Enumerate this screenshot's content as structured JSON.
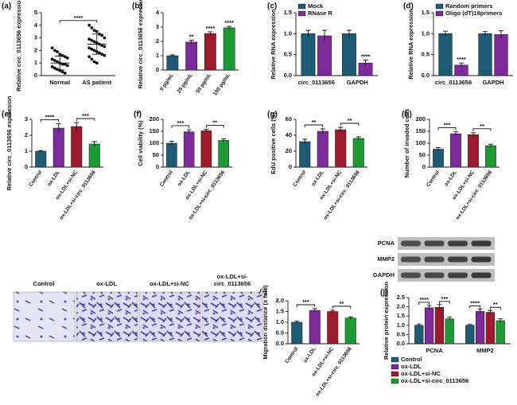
{
  "chart_data": [
    {
      "type": "dot",
      "panel": "(a)",
      "y_label": "Relative circ_0113656 expression",
      "categories": [
        "Normal",
        "AS patient"
      ],
      "values": [
        [
          2.2,
          2.0,
          1.9,
          1.7,
          1.6,
          1.5,
          1.4,
          1.3,
          1.2,
          1.1,
          1.0,
          0.9,
          0.9,
          0.8,
          0.7,
          0.6,
          0.5,
          0.4,
          0.3,
          0.2
        ],
        [
          4.0,
          3.8,
          3.6,
          3.5,
          3.3,
          3.2,
          3.0,
          2.9,
          2.8,
          2.7,
          2.6,
          2.5,
          2.4,
          2.3,
          2.2,
          2.1,
          2.0,
          1.9,
          1.8,
          1.7,
          1.6,
          1.5,
          1.3,
          1.1,
          1.0
        ]
      ],
      "means": [
        1.0,
        2.5
      ],
      "sd": [
        0.55,
        0.8
      ],
      "comparison": "****",
      "color": "#111111",
      "ylim": [
        0,
        5
      ],
      "yticks": [
        0,
        1,
        2,
        3,
        4,
        5
      ]
    },
    {
      "type": "bar",
      "panel": "(b)",
      "y_label": "Relative circ_0113656 expression",
      "categories": [
        "0 pg/mL",
        "25 pg/mL",
        "50 pg/mL",
        "100 pg/mL"
      ],
      "values": [
        1.0,
        1.95,
        2.55,
        2.95
      ],
      "errors": [
        0.06,
        0.12,
        0.12,
        0.1
      ],
      "colors": [
        "#1d5c74",
        "#7d2b9b",
        "#9e1b2b",
        "#1c9a33"
      ],
      "annotations": [
        null,
        "**",
        "****",
        "****"
      ],
      "ylim": [
        0,
        4
      ],
      "yticks": [
        0,
        1,
        2,
        3,
        4
      ]
    },
    {
      "type": "grouped_bar",
      "panel": "(c)",
      "y_label": "Relative RNA expression",
      "categories": [
        "circ_0113656",
        "GAPDH"
      ],
      "series": [
        {
          "name": "Mock",
          "color": "#1d5c74",
          "values": [
            1.0,
            1.0
          ],
          "errors": [
            0.08,
            0.08
          ],
          "annotations": [
            null,
            null
          ]
        },
        {
          "name": "RNase R",
          "color": "#7d2b9b",
          "values": [
            0.95,
            0.3
          ],
          "errors": [
            0.13,
            0.07
          ],
          "annotations": [
            null,
            "****"
          ]
        }
      ],
      "ylim": [
        0,
        1.5
      ],
      "yticks": [
        {
          "value": 0,
          "label": "0.0"
        },
        {
          "value": 0.5,
          "label": "0.5"
        },
        {
          "value": 1,
          "label": "1.0"
        },
        {
          "value": 1.5,
          "label": "1.5"
        }
      ]
    },
    {
      "type": "grouped_bar",
      "panel": "(d)",
      "y_label": "Relative RNA expression",
      "categories": [
        "circ_0113656",
        "GAPDH"
      ],
      "series": [
        {
          "name": "Random primers",
          "color": "#1d5c74",
          "values": [
            1.0,
            1.0
          ],
          "errors": [
            0.06,
            0.05
          ],
          "annotations": [
            null,
            null
          ]
        },
        {
          "name": "Oligo (dT)18primers",
          "color": "#7d2b9b",
          "values": [
            0.25,
            0.98
          ],
          "errors": [
            0.05,
            0.09
          ],
          "annotations": [
            "****",
            null
          ]
        }
      ],
      "ylim": [
        0,
        1.5
      ],
      "yticks": [
        {
          "value": 0,
          "label": "0.0"
        },
        {
          "value": 0.5,
          "label": "0.5"
        },
        {
          "value": 1,
          "label": "1.0"
        },
        {
          "value": 1.5,
          "label": "1.5"
        }
      ]
    },
    {
      "type": "bar",
      "panel": "(e)",
      "y_label": "Relative circ_0113656 expression",
      "categories": [
        "Control",
        "ox-LDL",
        "ox-LDL+si-NC",
        "ox-LDL+si-circ_0113656"
      ],
      "values": [
        1.0,
        2.45,
        2.55,
        1.45
      ],
      "errors": [
        0.04,
        0.28,
        0.25,
        0.15
      ],
      "colors": [
        "#1d5c74",
        "#7d2b9b",
        "#9e1b2b",
        "#1c9a33"
      ],
      "comparisons": [
        "****",
        "***"
      ],
      "ylim": [
        0,
        3
      ],
      "yticks": [
        0,
        1,
        2,
        3
      ]
    },
    {
      "type": "bar",
      "panel": "(f)",
      "y_label": "Cell viability (%)",
      "categories": [
        "Control",
        "ox-LDL",
        "ox-LDL+si-NC",
        "ox-LDL+si-circ_0113656"
      ],
      "values": [
        100,
        148,
        152,
        112
      ],
      "errors": [
        8,
        9,
        6,
        7
      ],
      "colors": [
        "#1d5c74",
        "#7d2b9b",
        "#9e1b2b",
        "#1c9a33"
      ],
      "comparisons": [
        "***",
        "**"
      ],
      "ylim": [
        0,
        200
      ],
      "yticks": [
        0,
        50,
        100,
        150,
        200
      ]
    },
    {
      "type": "bar",
      "panel": "(g)",
      "y_label": "EdU positive cells (%)",
      "categories": [
        "Control",
        "ox-LDL",
        "ox-LDL+si-NC",
        "ox-LDL+si-circ_0113656"
      ],
      "values": [
        32,
        45,
        47,
        36
      ],
      "errors": [
        3,
        3,
        3,
        2
      ],
      "colors": [
        "#1d5c74",
        "#7d2b9b",
        "#9e1b2b",
        "#1c9a33"
      ],
      "comparisons": [
        "**",
        "**"
      ],
      "ylim": [
        0,
        60
      ],
      "yticks": [
        0,
        20,
        40,
        60
      ]
    },
    {
      "type": "bar",
      "panel": "(h)",
      "y_label": "Number of invaded cells",
      "categories": [
        "Control",
        "ox-LDL",
        "ox-LDL+si-NC",
        "ox-LDL+si-circ_0113656"
      ],
      "values": [
        75,
        140,
        136,
        90
      ],
      "errors": [
        7,
        8,
        8,
        6
      ],
      "colors": [
        "#1d5c74",
        "#7d2b9b",
        "#9e1b2b",
        "#1c9a33"
      ],
      "comparisons": [
        "***",
        "**"
      ],
      "ylim": [
        0,
        200
      ],
      "yticks": [
        0,
        50,
        100,
        150,
        200
      ]
    },
    {
      "type": "bar",
      "panel": "(i)",
      "y_label": "Migration distance (x fold)",
      "categories": [
        "Control",
        "ox-LDL",
        "ox-LDL+si-NC",
        "ox-LDL+si-circ_0113656"
      ],
      "values": [
        1.0,
        1.55,
        1.5,
        1.2
      ],
      "errors": [
        0.05,
        0.08,
        0.06,
        0.05
      ],
      "colors": [
        "#1d5c74",
        "#7d2b9b",
        "#9e1b2b",
        "#1c9a33"
      ],
      "comparisons": [
        "***",
        "**"
      ],
      "ylim": [
        0,
        2
      ],
      "yticks": [
        {
          "value": 0,
          "label": "0.0"
        },
        {
          "value": 0.5,
          "label": "0.5"
        },
        {
          "value": 1,
          "label": "1.0"
        },
        {
          "value": 1.5,
          "label": "1.5"
        },
        {
          "value": 2,
          "label": "2.0"
        }
      ]
    },
    {
      "type": "grouped_bar",
      "panel": "(j)",
      "y_label": "Relative protein expression",
      "categories": [
        "PCNA",
        "MMP2"
      ],
      "series": [
        {
          "name": "Control",
          "color": "#1d5c74",
          "values": [
            1.0,
            1.0
          ],
          "errors": [
            0.07,
            0.05
          ]
        },
        {
          "name": "ox-LDL",
          "color": "#7d2b9b",
          "values": [
            1.95,
            1.75
          ],
          "errors": [
            0.12,
            0.13
          ]
        },
        {
          "name": "ox-LDL+si-NC",
          "color": "#9e1b2b",
          "values": [
            1.97,
            1.7
          ],
          "errors": [
            0.15,
            0.1
          ]
        },
        {
          "name": "ox-LDL+si-circ_0113656",
          "color": "#1c9a33",
          "values": [
            1.35,
            1.25
          ],
          "errors": [
            0.1,
            0.1
          ]
        }
      ],
      "annotations": [
        [
          "****",
          "***"
        ],
        [
          "****",
          "**"
        ]
      ],
      "legend": true,
      "ylim": [
        0,
        2.5
      ],
      "yticks": [
        {
          "value": 0,
          "label": "0.0"
        },
        {
          "value": 0.5,
          "label": "0.5"
        },
        {
          "value": 1,
          "label": "1.0"
        },
        {
          "value": 1.5,
          "label": "1.5"
        },
        {
          "value": 2,
          "label": "2.0"
        },
        {
          "value": 2.5,
          "label": "2.5"
        }
      ]
    }
  ],
  "blot": {
    "labels": [
      "PCNA",
      "MMP2",
      "GAPDH"
    ]
  },
  "micrographs": {
    "labels": [
      [
        "Control"
      ],
      [
        "ox-LDL"
      ],
      [
        "ox-LDL+si-NC"
      ],
      [
        "ox-LDL+si-",
        "circ_0113656"
      ]
    ]
  }
}
